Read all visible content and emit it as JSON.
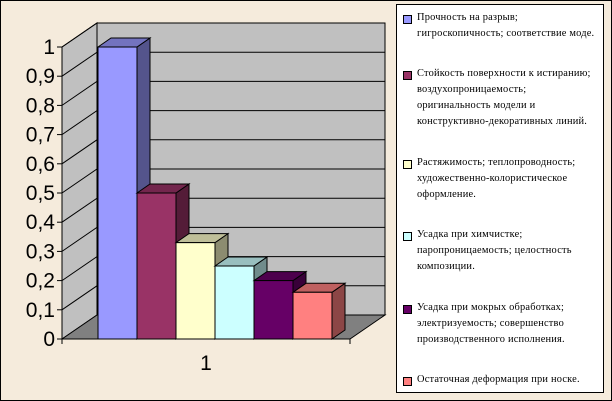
{
  "colors": {
    "background": "#f5ebdc",
    "wall": "#c0c0c0",
    "floor": "#808080",
    "grid": "#000000"
  },
  "chart_data": {
    "type": "bar",
    "categories": [
      "1"
    ],
    "ylim": [
      0,
      1
    ],
    "yticks": [
      "0",
      "0,1",
      "0,2",
      "0,3",
      "0,4",
      "0,5",
      "0,6",
      "0,7",
      "0,8",
      "0,9",
      "1"
    ],
    "grid": true,
    "legend_placement": "right",
    "series": [
      {
        "name": "Прочность на разрыв; гигроскопичность; соответствие моде.",
        "values": [
          1.0
        ],
        "color": "#9999ff"
      },
      {
        "name": "Стойкость поверхности к истиранию; воздухопроницаемость; оригинальность модели и конструктивно-декоративных линий.",
        "values": [
          0.5
        ],
        "color": "#993366"
      },
      {
        "name": "Растяжимость; теплопроводность; художественно-колористическое оформление.",
        "values": [
          0.33
        ],
        "color": "#ffffcc"
      },
      {
        "name": "Усадка при химчистке; паропроницаемость; целостность композиции.",
        "values": [
          0.25
        ],
        "color": "#ccffff"
      },
      {
        "name": "Усадка при мокрых обработках; электризуемость; совершенство производственного исполнения.",
        "values": [
          0.2
        ],
        "color": "#660066"
      },
      {
        "name": "Остаточная деформация при носке.",
        "values": [
          0.16
        ],
        "color": "#ff8080"
      }
    ]
  }
}
